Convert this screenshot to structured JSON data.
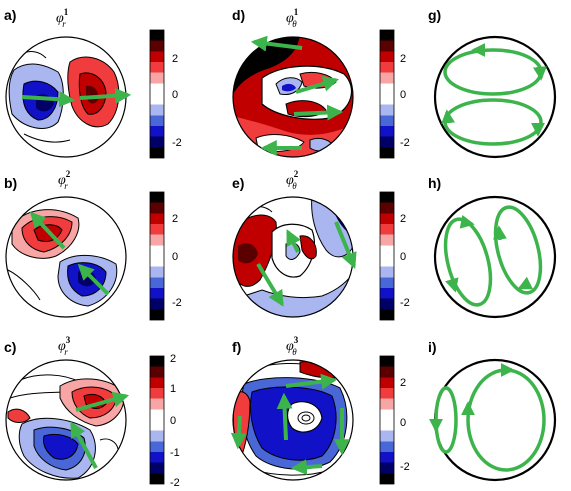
{
  "colors": {
    "arrow": "#3cb44b",
    "outline": "#000000",
    "colormap": [
      "#000000",
      "#5a0000",
      "#c00000",
      "#f03c3c",
      "#f7a5a5",
      "#ffffff",
      "#ffffff",
      "#a9b6ef",
      "#4a67d8",
      "#1111c8",
      "#000066",
      "#000000"
    ]
  },
  "panels": [
    {
      "id": "a",
      "label": "a)",
      "symbol": "φ",
      "sup": "1",
      "sub": "r",
      "ticks": [
        "2",
        "0",
        "-2"
      ]
    },
    {
      "id": "b",
      "label": "b)",
      "symbol": "φ",
      "sup": "2",
      "sub": "r",
      "ticks": [
        "2",
        "0",
        "-2"
      ]
    },
    {
      "id": "c",
      "label": "c)",
      "symbol": "φ",
      "sup": "3",
      "sub": "r",
      "ticks": [
        "2",
        "1",
        "0",
        "-1",
        "-2"
      ]
    },
    {
      "id": "d",
      "label": "d)",
      "symbol": "φ",
      "sup": "1",
      "sub": "θ",
      "ticks": [
        "2",
        "0",
        "-2"
      ]
    },
    {
      "id": "e",
      "label": "e)",
      "symbol": "φ",
      "sup": "2",
      "sub": "θ",
      "ticks": [
        "2",
        "0",
        "-2"
      ]
    },
    {
      "id": "f",
      "label": "f)",
      "symbol": "φ",
      "sup": "3",
      "sub": "θ",
      "ticks": [
        "2",
        "0",
        "-2"
      ]
    },
    {
      "id": "g",
      "label": "g)"
    },
    {
      "id": "h",
      "label": "h)"
    },
    {
      "id": "i",
      "label": "i)"
    }
  ]
}
